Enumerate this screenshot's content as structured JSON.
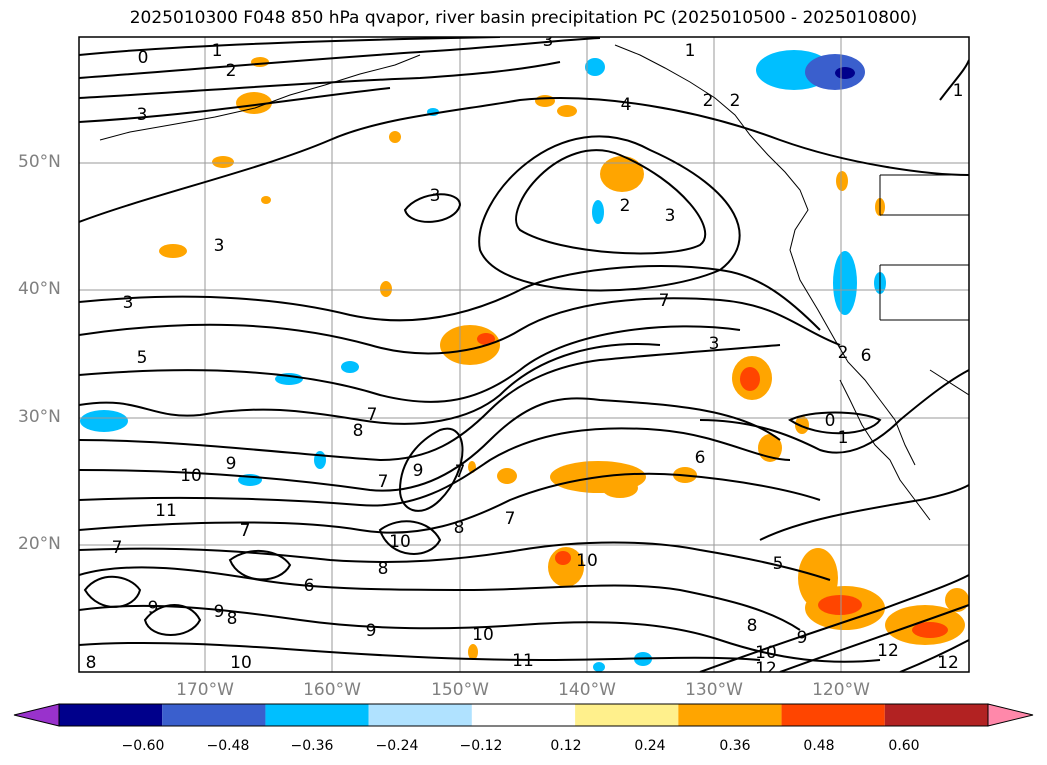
{
  "title": "2025010300 F048 850 hPa qvapor, river basin precipitation PC (2025010500 - 2025010800)",
  "lat_labels": [
    "50°N",
    "40°N",
    "30°N",
    "20°N"
  ],
  "lon_labels": [
    "170°W",
    "160°W",
    "150°W",
    "140°W",
    "130°W",
    "120°W"
  ],
  "colorbar": {
    "ticks": [
      "−0.60",
      "−0.48",
      "−0.36",
      "−0.24",
      "−0.12",
      "0.12",
      "0.24",
      "0.36",
      "0.48",
      "0.60"
    ],
    "colors": [
      "#9932cc",
      "#00008b",
      "#3a5fcd",
      "#00bfff",
      "#b0e2ff",
      "#ffffff",
      "#fff08c",
      "#ffa500",
      "#ff4500",
      "#b22222",
      "#ff88aa"
    ]
  },
  "contour_labels": [
    "0",
    "1",
    "2",
    "3",
    "3",
    "4",
    "2",
    "1",
    "2",
    "3",
    "3",
    "3",
    "2",
    "3",
    "5",
    "7",
    "7",
    "3",
    "7",
    "8",
    "0",
    "1",
    "10",
    "9",
    "6",
    "11",
    "7",
    "7",
    "8",
    "10",
    "9",
    "8",
    "7",
    "5",
    "7",
    "10",
    "6",
    "9",
    "9",
    "8",
    "9",
    "10",
    "12",
    "12",
    "8",
    "9",
    "10",
    "8",
    "11",
    "10",
    "12",
    "1",
    "2",
    "6"
  ]
}
